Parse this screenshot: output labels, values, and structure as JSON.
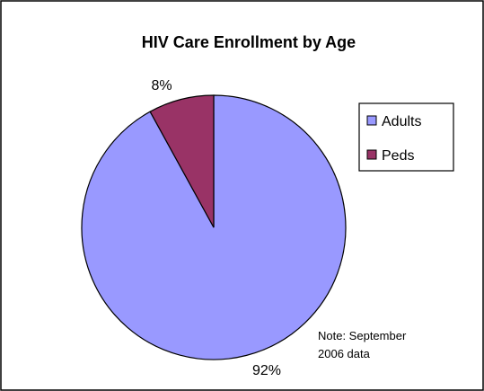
{
  "chart_data": {
    "type": "pie",
    "title": "HIV Care Enrollment by Age",
    "categories": [
      "Adults",
      "Peds"
    ],
    "values": [
      92,
      8
    ],
    "data_labels": [
      "92%",
      "8%"
    ],
    "colors": [
      "#9999ff",
      "#993366"
    ],
    "legend": {
      "placement": "right",
      "entries": [
        "Adults",
        "Peds"
      ]
    },
    "annotation": {
      "line1": "Note: September",
      "line2": "2006 data"
    }
  }
}
